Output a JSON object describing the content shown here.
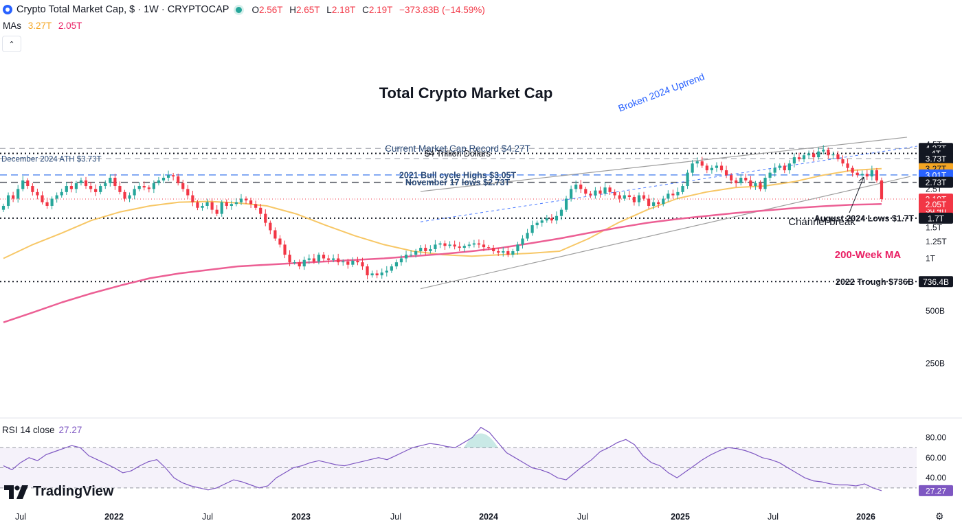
{
  "header": {
    "title": "Crypto Total Market Cap, $ · 1W · CRYPTOCAP",
    "open_label": "O",
    "open": "2.56T",
    "high_label": "H",
    "high": "2.65T",
    "low_label": "L",
    "low": "2.18T",
    "close_label": "C",
    "close": "2.19T",
    "change": "−373.83B (−14.59%)"
  },
  "mas": {
    "label": "MAs",
    "ma1": "3.27T",
    "ma2": "2.05T"
  },
  "rsi": {
    "label": "RSI 14 close",
    "value": "27.27"
  },
  "logo_text": "TradingView",
  "colors": {
    "up": "#26a69a",
    "down": "#f23645",
    "ma50": "#f7c766",
    "ma200": "#ec5f94",
    "rsi": "#7e57c2",
    "accent": "#2962ff"
  },
  "chart_data": {
    "type": "candlestick",
    "title": "Total Crypto Market Cap",
    "timeframe": "1W",
    "x_ticks": [
      "Jul",
      "2022",
      "Jul",
      "2023",
      "Jul",
      "2024",
      "Jul",
      "2025",
      "Jul",
      "2026"
    ],
    "y_ticks": [
      "4.5T",
      "3.5T",
      "2.5T",
      "2.25T",
      "1.75T",
      "1.5T",
      "1.25T",
      "1T",
      "500B",
      "250B"
    ],
    "y_scale": "log",
    "price_labels": [
      {
        "text": "4.27T",
        "style": "dark"
      },
      {
        "text": "4T",
        "style": "dark"
      },
      {
        "text": "3.73T",
        "style": "dark"
      },
      {
        "text": "3.27T",
        "style": "orange"
      },
      {
        "text": "3.01T",
        "style": "blue"
      },
      {
        "text": "2.73T",
        "style": "dark"
      },
      {
        "text": "2.19T",
        "style": "red"
      },
      {
        "text": "3d 4h",
        "style": "red"
      },
      {
        "text": "2.05T",
        "style": "red"
      },
      {
        "text": "1.7T",
        "style": "dark"
      },
      {
        "text": "736.4B",
        "style": "dark"
      }
    ],
    "annotations": {
      "record": "Current Market Cap Record $4.27T",
      "four_trillion": "$4 Trillion Dollars",
      "dec_ath": "December 2024 ATH $3.73T",
      "bull_highs": "2021 Bull cycle Highs $3.05T",
      "nov_lows": "November 17 lows $2.73T",
      "aug_lows": "August 2024 Lows $1.7T",
      "trough": "2022 Trough $736B",
      "uptrend": "Broken 2024 Uptrend",
      "channel_break": "Channel break",
      "ma200_label": "200-Week MA"
    },
    "price_series": [
      2.0,
      2.3,
      2.2,
      2.5,
      2.8,
      2.6,
      2.4,
      2.3,
      2.1,
      2.0,
      2.2,
      2.3,
      2.4,
      2.6,
      2.5,
      2.7,
      2.8,
      2.6,
      2.5,
      2.4,
      2.6,
      2.7,
      2.9,
      2.6,
      2.4,
      2.2,
      2.3,
      2.5,
      2.6,
      2.55,
      2.5,
      2.7,
      2.8,
      2.9,
      3.0,
      2.95,
      2.7,
      2.5,
      2.3,
      2.1,
      1.95,
      2.0,
      2.1,
      1.9,
      1.8,
      2.1,
      2.0,
      2.05,
      2.1,
      2.2,
      2.15,
      2.05,
      1.95,
      1.8,
      1.6,
      1.45,
      1.3,
      1.2,
      1.05,
      0.95,
      0.95,
      0.9,
      0.98,
      1.0,
      0.96,
      1.05,
      1.0,
      0.98,
      1.0,
      0.95,
      0.96,
      0.92,
      0.97,
      0.95,
      0.9,
      0.8,
      0.82,
      0.8,
      0.83,
      0.85,
      0.9,
      0.95,
      1.0,
      1.05,
      1.05,
      1.1,
      1.15,
      1.1,
      1.13,
      1.2,
      1.22,
      1.18,
      1.2,
      1.17,
      1.15,
      1.18,
      1.2,
      1.22,
      1.2,
      1.16,
      1.15,
      1.1,
      1.08,
      1.1,
      1.05,
      1.1,
      1.2,
      1.3,
      1.4,
      1.55,
      1.6,
      1.65,
      1.7,
      1.65,
      1.75,
      1.9,
      2.2,
      2.5,
      2.65,
      2.5,
      2.35,
      2.3,
      2.45,
      2.35,
      2.55,
      2.4,
      2.3,
      2.2,
      2.3,
      2.25,
      2.1,
      2.3,
      2.2,
      2.0,
      2.1,
      2.05,
      2.2,
      2.35,
      2.3,
      2.4,
      2.6,
      3.1,
      3.5,
      3.6,
      3.4,
      3.2,
      3.3,
      3.4,
      3.2,
      3.0,
      2.8,
      2.7,
      2.9,
      2.8,
      2.6,
      2.7,
      2.5,
      2.9,
      3.1,
      3.3,
      3.4,
      3.2,
      3.5,
      3.8,
      3.7,
      3.9,
      4.0,
      3.8,
      4.1,
      4.2,
      3.9,
      3.95,
      3.7,
      3.5,
      3.3,
      3.1,
      3.0,
      3.05,
      2.95,
      3.2,
      2.8,
      2.19
    ],
    "series": [
      {
        "name": "MA 50",
        "values": [
          1.0,
          1.2,
          1.4,
          1.65,
          1.85,
          2.0,
          2.1,
          2.12,
          2.08,
          2.0,
          1.8,
          1.55,
          1.35,
          1.2,
          1.1,
          1.05,
          1.03,
          1.05,
          1.07,
          1.1,
          1.3,
          1.6,
          1.9,
          2.2,
          2.4,
          2.55,
          2.6,
          2.75,
          3.0,
          3.2,
          3.27
        ]
      },
      {
        "name": "200-Week MA",
        "values": [
          0.43,
          0.49,
          0.56,
          0.63,
          0.7,
          0.77,
          0.82,
          0.86,
          0.9,
          0.92,
          0.94,
          0.96,
          0.98,
          1.0,
          1.03,
          1.06,
          1.1,
          1.15,
          1.22,
          1.3,
          1.4,
          1.5,
          1.6,
          1.68,
          1.75,
          1.82,
          1.88,
          1.94,
          1.99,
          2.03,
          2.05
        ]
      }
    ],
    "rsi": {
      "ylim": [
        0,
        100
      ],
      "y_ticks": [
        "80.00",
        "60.00",
        "40.00"
      ],
      "levels": [
        70,
        50,
        30
      ],
      "values": [
        52,
        48,
        55,
        60,
        57,
        63,
        66,
        69,
        72,
        70,
        62,
        58,
        54,
        50,
        45,
        47,
        52,
        56,
        58,
        50,
        40,
        35,
        32,
        30,
        28,
        30,
        34,
        38,
        36,
        33,
        30,
        32,
        40,
        45,
        50,
        52,
        55,
        57,
        55,
        53,
        52,
        54,
        56,
        58,
        60,
        58,
        62,
        66,
        70,
        72,
        74,
        73,
        71,
        70,
        75,
        80,
        90,
        85,
        75,
        65,
        60,
        55,
        50,
        48,
        45,
        40,
        38,
        45,
        52,
        58,
        66,
        70,
        75,
        78,
        73,
        62,
        55,
        52,
        45,
        40,
        46,
        52,
        58,
        63,
        67,
        70,
        69,
        67,
        64,
        60,
        58,
        55,
        50,
        45,
        40,
        37,
        36,
        34,
        33,
        33,
        32,
        34,
        30,
        27.27
      ]
    }
  }
}
